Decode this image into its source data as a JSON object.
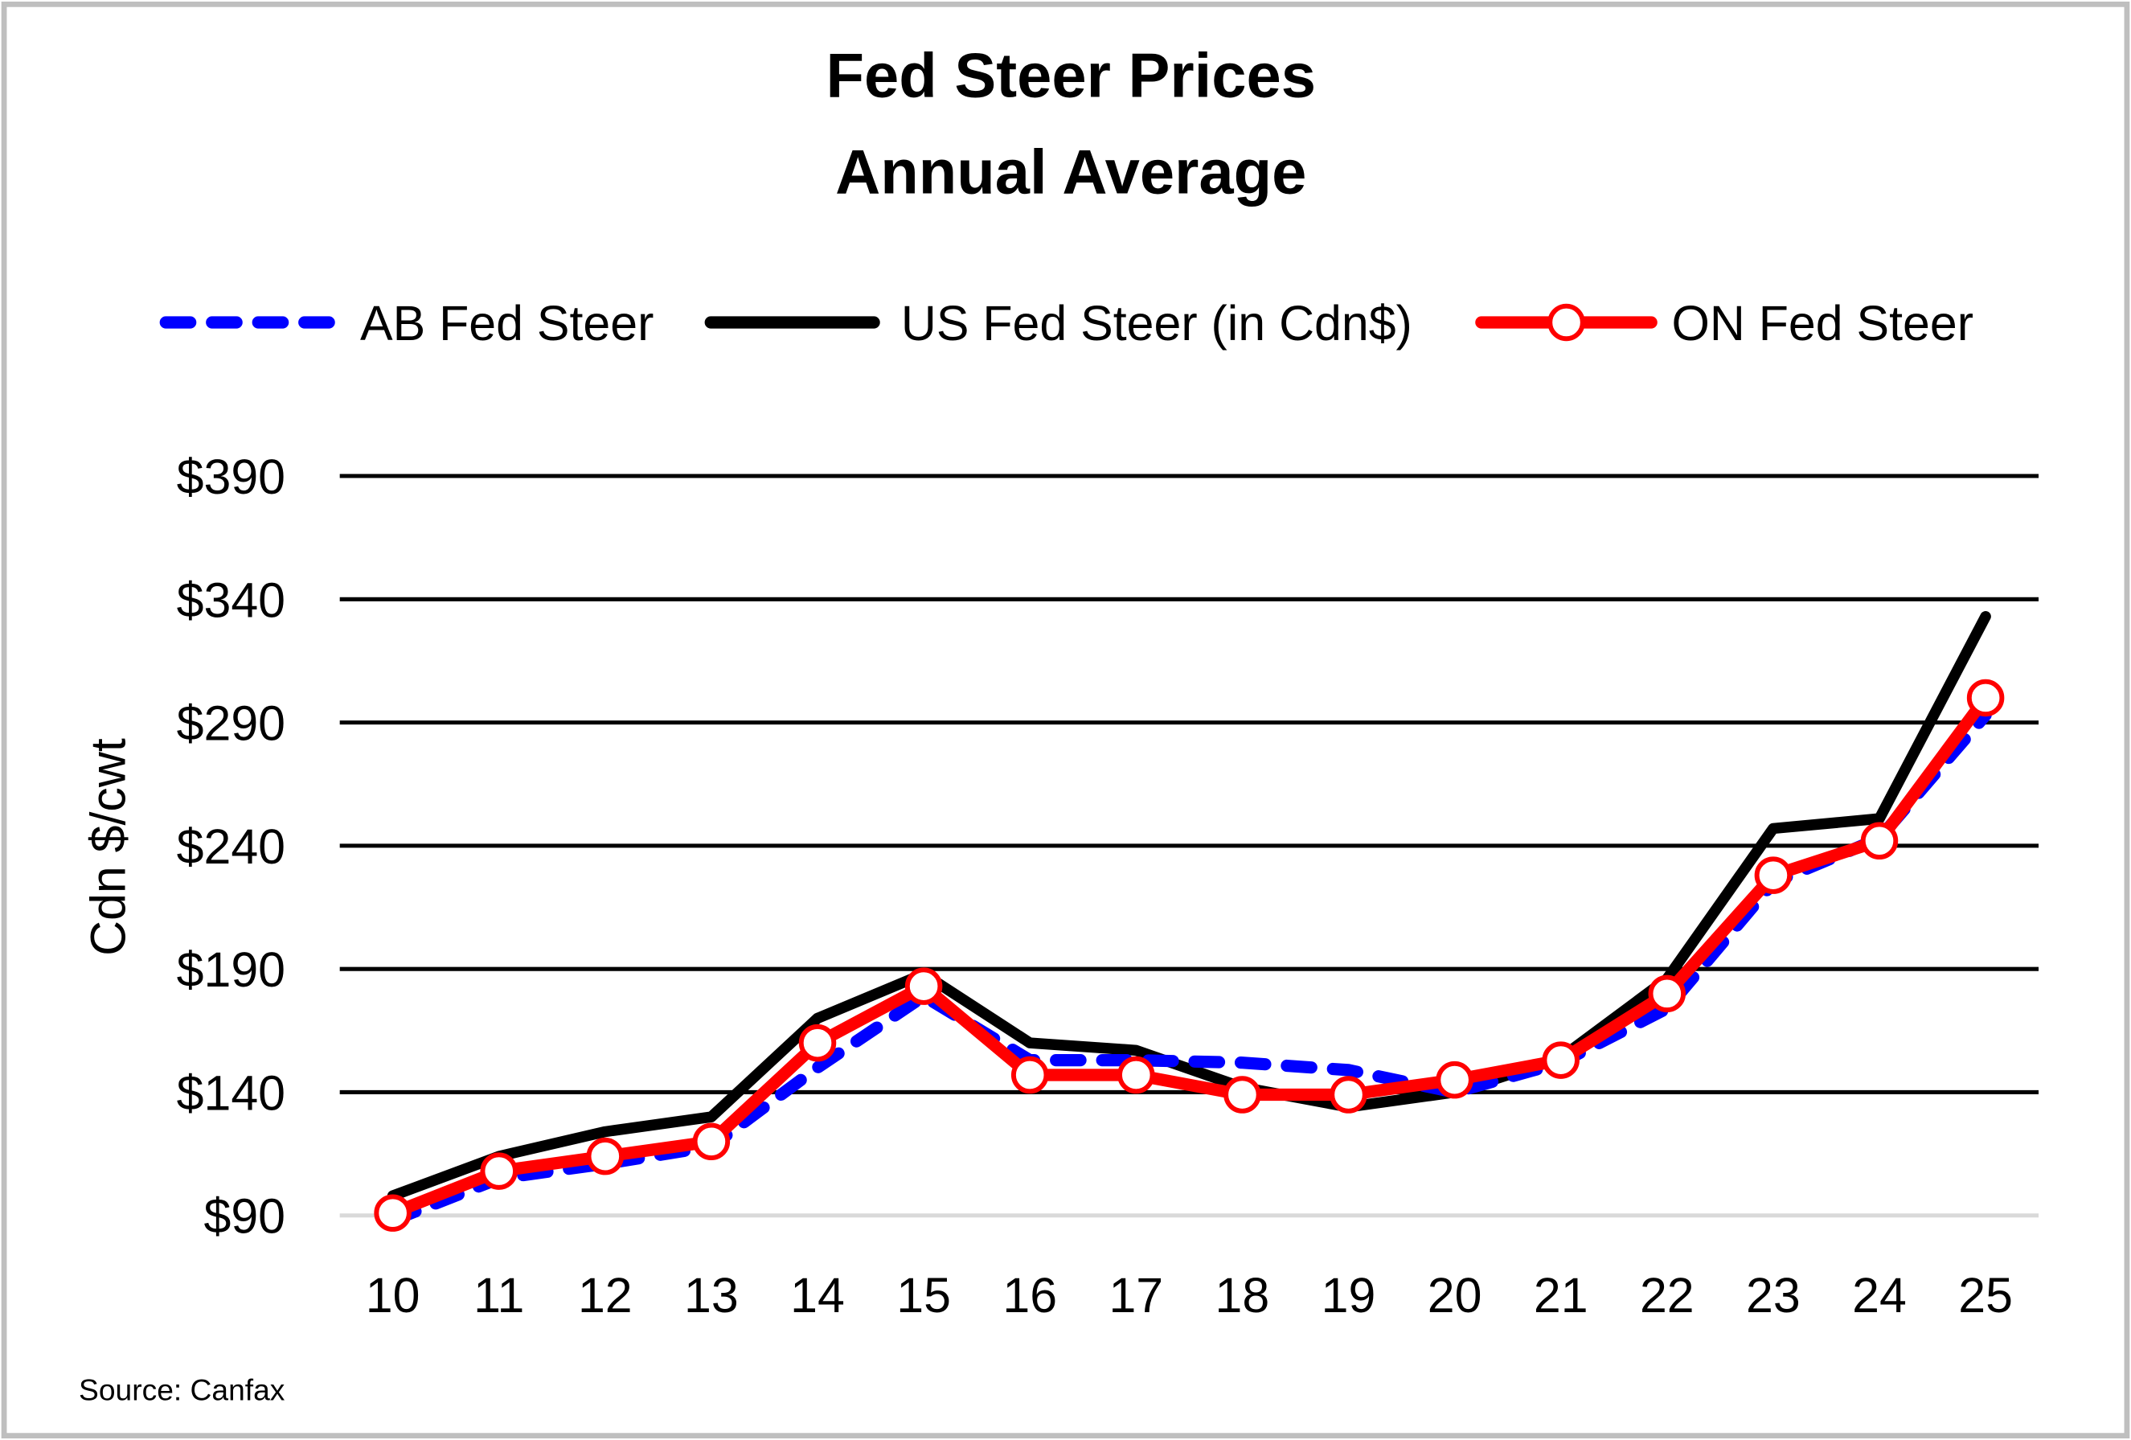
{
  "chart_data": {
    "type": "line",
    "title": "Fed Steer Prices",
    "subtitle": "Annual Average",
    "xlabel": "",
    "ylabel": "Cdn $/cwt",
    "source": "Source: Canfax",
    "x": [
      "10",
      "11",
      "12",
      "13",
      "14",
      "15",
      "16",
      "17",
      "18",
      "19",
      "20",
      "21",
      "22",
      "23",
      "24",
      "25"
    ],
    "ylim": [
      90,
      390
    ],
    "yticks": [
      90,
      140,
      190,
      240,
      290,
      340,
      390
    ],
    "ytick_labels": [
      "$90",
      "$140",
      "$190",
      "$240",
      "$290",
      "$340",
      "$390"
    ],
    "grid": true,
    "legend_position": "top",
    "series": [
      {
        "name": "AB Fed Steer",
        "color": "#0000ff",
        "style": "dashed",
        "values": [
          88,
          105,
          111,
          118,
          150,
          179,
          153,
          153,
          152,
          149,
          140,
          152,
          174,
          225,
          243,
          293
        ]
      },
      {
        "name": "US Fed Steer (in Cdn$)",
        "color": "#000000",
        "style": "solid",
        "values": [
          98,
          114,
          124,
          130,
          170,
          188,
          160,
          157,
          142,
          134,
          140,
          154,
          186,
          247,
          251,
          333
        ]
      },
      {
        "name": "ON Fed Steer",
        "color": "#ff0000",
        "style": "solid-markers",
        "values": [
          91,
          108,
          114,
          120,
          160,
          183,
          147,
          147,
          139,
          139,
          145,
          153,
          180,
          228,
          242,
          300
        ]
      }
    ]
  }
}
